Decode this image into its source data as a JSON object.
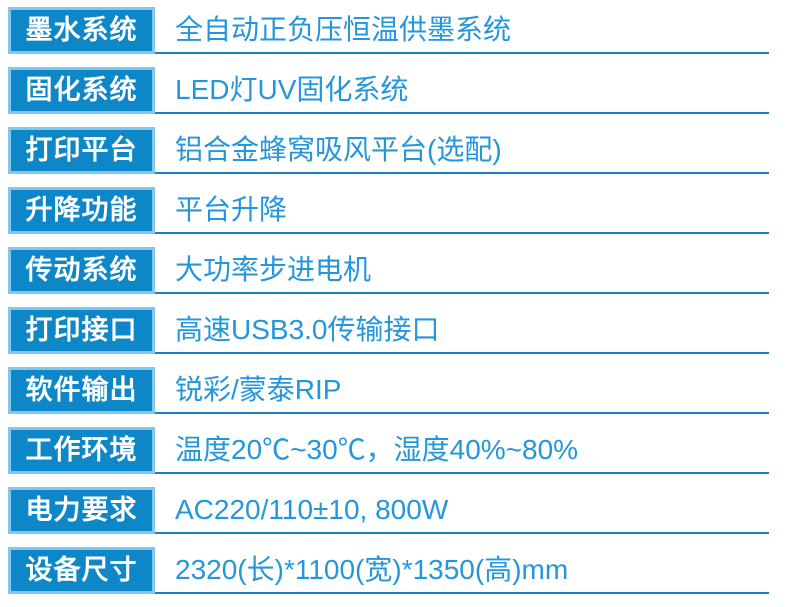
{
  "document": {
    "type": "product-specification-table",
    "colors": {
      "label_fill": "#0d87c8",
      "label_border": "#82c7ec",
      "label_text": "#ffffff",
      "value_text": "#2496dc",
      "rule": "#1880c1",
      "background": "#ffffff"
    },
    "rows": [
      {
        "label": "墨水系统",
        "value": "全自动正负压恒温供墨系统"
      },
      {
        "label": "固化系统",
        "value": "LED灯UV固化系统"
      },
      {
        "label": "打印平台",
        "value": "铝合金蜂窝吸风平台(选配)"
      },
      {
        "label": "升降功能",
        "value": "平台升降"
      },
      {
        "label": "传动系统",
        "value": "大功率步进电机"
      },
      {
        "label": "打印接口",
        "value": "高速USB3.0传输接口"
      },
      {
        "label": "软件输出",
        "value": "锐彩/蒙泰RIP"
      },
      {
        "label": "工作环境",
        "value": "温度20℃~30℃，湿度40%~80%"
      },
      {
        "label": "电力要求",
        "value": "AC220/110±10, 800W"
      },
      {
        "label": "设备尺寸",
        "value": "2320(长)*1100(宽)*1350(高)mm"
      }
    ]
  }
}
